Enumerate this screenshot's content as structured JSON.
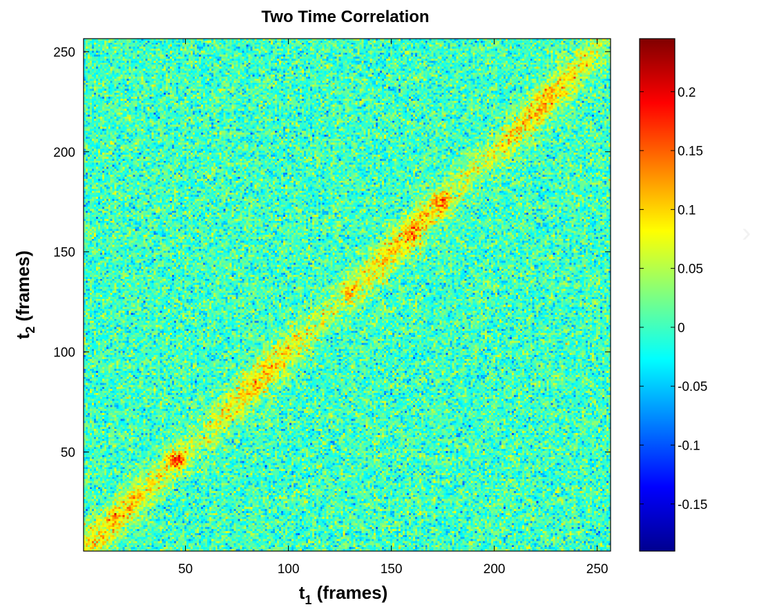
{
  "chart_data": {
    "type": "heatmap",
    "title": "Two Time Correlation",
    "xlabel": {
      "main": "t",
      "sub": "1",
      "rest": " (frames)"
    },
    "ylabel": {
      "main": "t",
      "sub": "2",
      "rest": " (frames)"
    },
    "xlim": [
      1,
      256
    ],
    "ylim": [
      1,
      256
    ],
    "x_ticks": [
      50,
      100,
      150,
      200,
      250
    ],
    "y_ticks": [
      50,
      100,
      150,
      200,
      250
    ],
    "grid": false,
    "colormap": "jet",
    "clim": [
      -0.19,
      0.245
    ],
    "colorbar_ticks": [
      -0.15,
      -0.1,
      -0.05,
      0,
      0.05,
      0.1,
      0.15,
      0.2
    ],
    "colorbar_tick_labels": [
      "-0.15",
      "-0.1",
      "-0.05",
      "0",
      "0.05",
      "0.1",
      "0.15",
      "0.2"
    ],
    "matrix_size": 256,
    "background_mean": 0.0,
    "diagonal_peak": 0.1,
    "hot_spots": [
      {
        "t1": 46,
        "t2": 46,
        "value": 0.22
      },
      {
        "t1": 175,
        "t2": 175,
        "value": 0.18
      },
      {
        "t1": 130,
        "t2": 130,
        "value": 0.15
      },
      {
        "t1": 160,
        "t2": 160,
        "value": 0.14
      }
    ]
  }
}
